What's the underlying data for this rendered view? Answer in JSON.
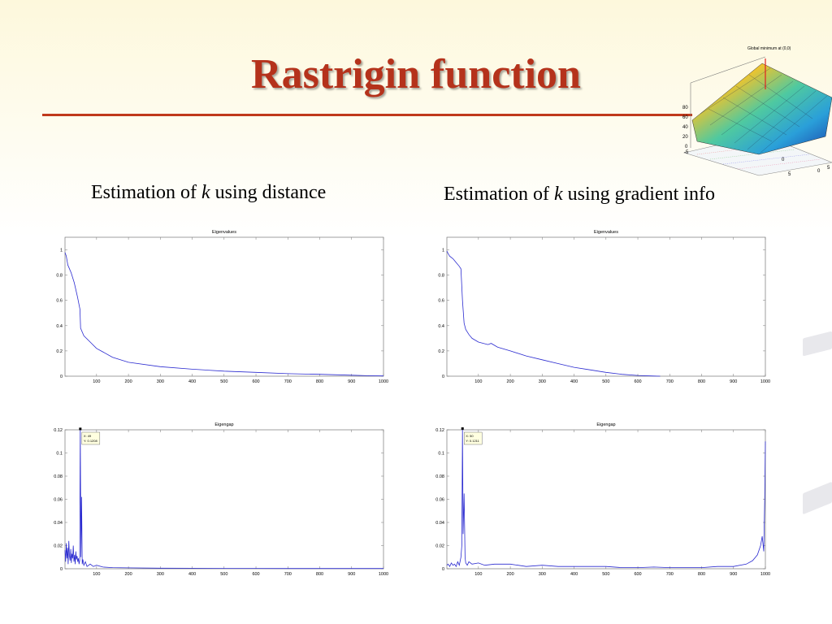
{
  "slide": {
    "title": "Rastrigin function",
    "subtitle_left": {
      "prefix": "Estimation of ",
      "k": "k",
      "suffix": " using distance"
    },
    "subtitle_right": {
      "prefix": "Estimation of ",
      "k": "k",
      "suffix": " using gradient info"
    },
    "inset_title": "Global minimum at (0,0)",
    "colors": {
      "title": "#b5321b",
      "rule": "#c0391b",
      "series": "#2b2bd0"
    }
  },
  "chart_data": [
    {
      "id": "eig-dist",
      "type": "line",
      "title": "Eigenvalues",
      "xlim": [
        1,
        1000
      ],
      "ylim": [
        0,
        1.1
      ],
      "xticks": [
        100,
        200,
        300,
        400,
        500,
        600,
        700,
        800,
        900,
        1000
      ],
      "yticks": [
        0,
        0.2,
        0.4,
        0.6,
        0.8,
        1
      ],
      "series": [
        {
          "x": [
            1,
            5,
            10,
            20,
            30,
            40,
            48,
            50,
            60,
            80,
            100,
            150,
            200,
            300,
            400,
            500,
            600,
            700,
            800,
            900,
            950,
            1000
          ],
          "y": [
            0.98,
            0.95,
            0.88,
            0.82,
            0.74,
            0.63,
            0.53,
            0.38,
            0.32,
            0.27,
            0.22,
            0.15,
            0.11,
            0.075,
            0.055,
            0.04,
            0.03,
            0.02,
            0.015,
            0.008,
            0.004,
            0.002
          ]
        }
      ]
    },
    {
      "id": "eig-grad",
      "type": "line",
      "title": "Eigenvalues",
      "xlim": [
        1,
        1000
      ],
      "ylim": [
        0,
        1.1
      ],
      "xticks": [
        100,
        200,
        300,
        400,
        500,
        600,
        700,
        800,
        900,
        1000
      ],
      "yticks": [
        0,
        0.2,
        0.4,
        0.6,
        0.8,
        1
      ],
      "series": [
        {
          "x": [
            1,
            5,
            10,
            20,
            30,
            40,
            45,
            50,
            55,
            60,
            70,
            80,
            100,
            130,
            140,
            160,
            200,
            250,
            300,
            350,
            400,
            450,
            500,
            550,
            600,
            650,
            670
          ],
          "y": [
            0.99,
            0.97,
            0.95,
            0.93,
            0.9,
            0.87,
            0.85,
            0.6,
            0.42,
            0.37,
            0.33,
            0.3,
            0.27,
            0.25,
            0.26,
            0.23,
            0.2,
            0.16,
            0.13,
            0.1,
            0.07,
            0.05,
            0.03,
            0.015,
            0.006,
            0.001,
            0
          ]
        }
      ]
    },
    {
      "id": "gap-dist",
      "type": "line",
      "title": "Eigengap",
      "xlim": [
        1,
        1000
      ],
      "ylim": [
        0,
        0.12
      ],
      "xticks": [
        100,
        200,
        300,
        400,
        500,
        600,
        700,
        800,
        900,
        1000
      ],
      "yticks": [
        0,
        0.02,
        0.04,
        0.06,
        0.08,
        0.1,
        0.12
      ],
      "datatip": {
        "x": 49,
        "y": 0.1208,
        "lines": [
          "X: 49",
          "Y: 0.1208"
        ]
      },
      "series": [
        {
          "x": [
            1,
            3,
            5,
            7,
            9,
            11,
            13,
            15,
            17,
            19,
            21,
            23,
            25,
            27,
            29,
            31,
            33,
            35,
            37,
            39,
            41,
            43,
            45,
            47,
            49,
            51,
            53,
            55,
            57,
            60,
            65,
            70,
            80,
            90,
            100,
            120,
            150,
            200,
            300,
            400,
            500,
            600,
            700,
            800,
            900,
            1000
          ],
          "y": [
            0.016,
            0.006,
            0.022,
            0.009,
            0.018,
            0.004,
            0.024,
            0.011,
            0.007,
            0.017,
            0.005,
            0.013,
            0.009,
            0.02,
            0.006,
            0.012,
            0.004,
            0.015,
            0.008,
            0.011,
            0.006,
            0.009,
            0.004,
            0.007,
            0.1208,
            0.01,
            0.062,
            0.004,
            0.008,
            0.003,
            0.006,
            0.002,
            0.004,
            0.002,
            0.003,
            0.0015,
            0.001,
            0.0008,
            0.0005,
            0.0004,
            0.0003,
            0.0003,
            0.0002,
            0.0002,
            0.0002,
            0.0002
          ]
        }
      ]
    },
    {
      "id": "gap-grad",
      "type": "line",
      "title": "Eigengap",
      "xlim": [
        1,
        1000
      ],
      "ylim": [
        0,
        0.12
      ],
      "xticks": [
        100,
        200,
        300,
        400,
        500,
        600,
        700,
        800,
        900,
        1000
      ],
      "yticks": [
        0,
        0.02,
        0.04,
        0.06,
        0.08,
        0.1,
        0.12
      ],
      "datatip": {
        "x": 50,
        "y": 0.1211,
        "lines": [
          "X: 50",
          "Y: 0.1211"
        ]
      },
      "series": [
        {
          "x": [
            1,
            5,
            10,
            15,
            20,
            25,
            30,
            35,
            40,
            45,
            48,
            50,
            52,
            55,
            58,
            60,
            65,
            70,
            80,
            100,
            120,
            150,
            200,
            250,
            300,
            350,
            400,
            450,
            500,
            550,
            600,
            650,
            700,
            750,
            800,
            850,
            900,
            940,
            960,
            975,
            985,
            990,
            995,
            998,
            1000
          ],
          "y": [
            0.003,
            0.004,
            0.002,
            0.005,
            0.003,
            0.004,
            0.002,
            0.006,
            0.003,
            0.01,
            0.02,
            0.1211,
            0.03,
            0.065,
            0.01,
            0.005,
            0.003,
            0.006,
            0.004,
            0.005,
            0.003,
            0.004,
            0.004,
            0.002,
            0.003,
            0.002,
            0.002,
            0.002,
            0.002,
            0.001,
            0.001,
            0.0015,
            0.001,
            0.001,
            0.001,
            0.002,
            0.002,
            0.004,
            0.007,
            0.012,
            0.02,
            0.028,
            0.015,
            0.06,
            0.11
          ]
        }
      ]
    }
  ]
}
